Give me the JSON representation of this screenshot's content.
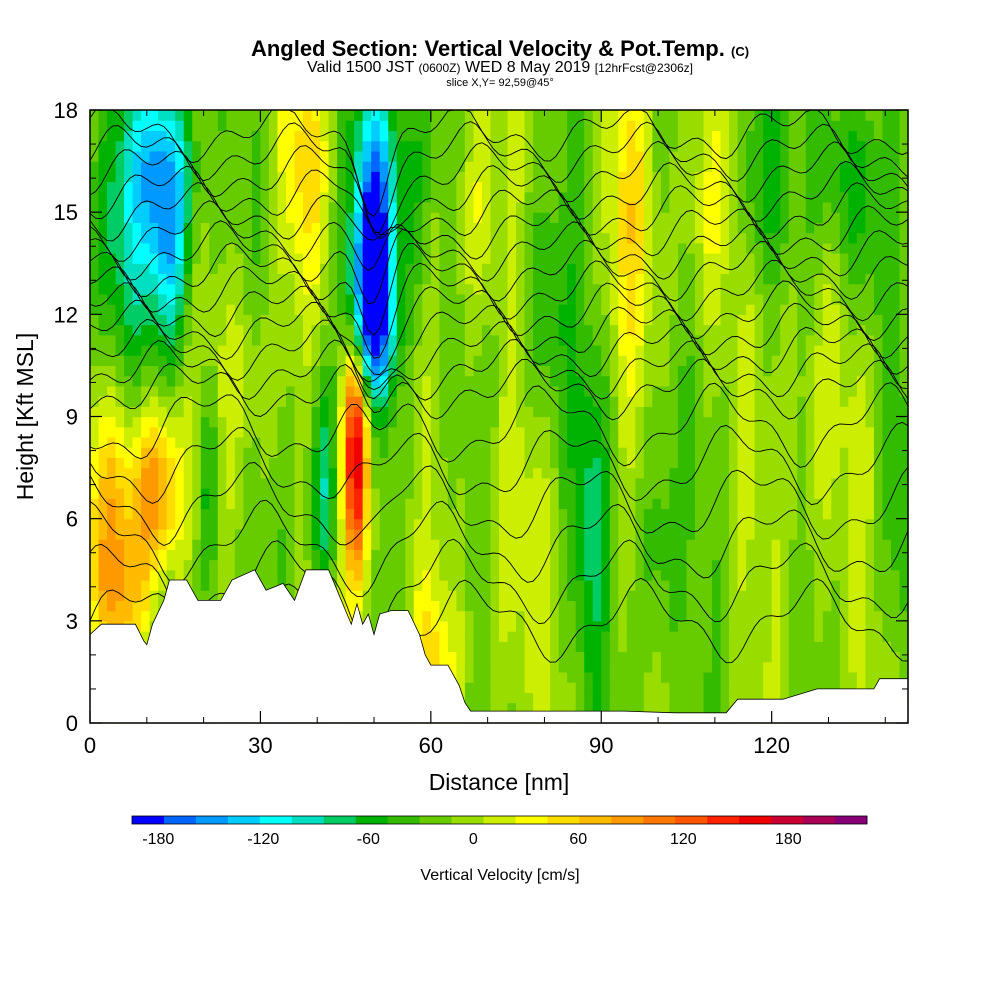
{
  "header": {
    "title": "Angled Section: Vertical Velocity & Pot.Temp.",
    "title_units": "(C)",
    "subtitle_part1": "Valid 1500 JST",
    "subtitle_utc": "(0600Z)",
    "subtitle_part2": "WED 8 May 2019",
    "subtitle_fcst": "[12hrFcst@2306z]",
    "slice": "slice X,Y= 92,59@45°"
  },
  "chart_data": {
    "type": "heatmap",
    "title": "Angled Section: Vertical Velocity & Pot.Temp.",
    "xlabel": "Distance [nm]",
    "ylabel": "Height [Kft MSL]",
    "xlim": [
      0,
      144
    ],
    "ylim": [
      0,
      18
    ],
    "xticks": [
      0,
      30,
      60,
      90,
      120
    ],
    "xtick_labels": [
      "0",
      "30",
      "60",
      "90",
      "120"
    ],
    "yticks": [
      0,
      3,
      6,
      9,
      12,
      15,
      18
    ],
    "ytick_labels": [
      "0",
      "3",
      "6",
      "9",
      "12",
      "15",
      "18"
    ],
    "colorbar": {
      "label": "Vertical Velocity [cm/s]",
      "min": -195,
      "max": 225,
      "step": 20,
      "tick_values": [
        -180,
        -120,
        -60,
        0,
        60,
        120,
        180
      ],
      "tick_labels": [
        "-180",
        "-120",
        "-60",
        "0",
        "60",
        "120",
        "180"
      ],
      "colors": [
        "#0000ff",
        "#0066ff",
        "#0099ff",
        "#00ccff",
        "#00ffff",
        "#00e0c0",
        "#00cc66",
        "#00b200",
        "#33bb00",
        "#66cc00",
        "#99dd00",
        "#ccee00",
        "#ffff00",
        "#ffdd00",
        "#ffbb00",
        "#ff9900",
        "#ff7700",
        "#ff5500",
        "#ff2200",
        "#ee0000",
        "#cc0033",
        "#aa0055",
        "#880077"
      ]
    },
    "velocity_features": [
      {
        "x": 50,
        "y": 14.2,
        "value": -195,
        "sx": 2.5,
        "sy": 3.0
      },
      {
        "x": 49.5,
        "y": 11.8,
        "value": -110,
        "sx": 2.8,
        "sy": 1.6
      },
      {
        "x": 47,
        "y": 7.0,
        "value": 175,
        "sx": 1.6,
        "sy": 2.4
      },
      {
        "x": 47,
        "y": 9.5,
        "value": 90,
        "sx": 2.0,
        "sy": 1.8
      },
      {
        "x": 12,
        "y": 6.8,
        "value": 120,
        "sx": 3.0,
        "sy": 1.8
      },
      {
        "x": 4,
        "y": 6.0,
        "value": 75,
        "sx": 4.0,
        "sy": 2.5
      },
      {
        "x": 13,
        "y": 16.5,
        "value": -120,
        "sx": 4.0,
        "sy": 2.0
      },
      {
        "x": 14,
        "y": 13.5,
        "value": -90,
        "sx": 2.5,
        "sy": 2.0
      },
      {
        "x": 5,
        "y": 14.0,
        "value": -70,
        "sx": 4.0,
        "sy": 3.0
      },
      {
        "x": 41,
        "y": 7.0,
        "value": -90,
        "sx": 1.8,
        "sy": 2.5
      },
      {
        "x": 21,
        "y": 7.0,
        "value": -60,
        "sx": 1.5,
        "sy": 2.5
      },
      {
        "x": 38,
        "y": 16.5,
        "value": 60,
        "sx": 3.0,
        "sy": 2.5
      },
      {
        "x": 56,
        "y": 16.0,
        "value": -55,
        "sx": 3.0,
        "sy": 3.0
      },
      {
        "x": 95,
        "y": 15.0,
        "value": 55,
        "sx": 3.0,
        "sy": 3.5
      },
      {
        "x": 88,
        "y": 6.0,
        "value": -55,
        "sx": 2.5,
        "sy": 3.5
      },
      {
        "x": 100,
        "y": 5.0,
        "value": -45,
        "sx": 2.5,
        "sy": 3.0
      },
      {
        "x": 80,
        "y": 12.0,
        "value": -45,
        "sx": 3.0,
        "sy": 2.5
      },
      {
        "x": 118,
        "y": 16.0,
        "value": -50,
        "sx": 3.0,
        "sy": 2.0
      },
      {
        "x": 131,
        "y": 16.5,
        "value": -55,
        "sx": 3.5,
        "sy": 2.0
      },
      {
        "x": 136,
        "y": 14.0,
        "value": -40,
        "sx": 3.0,
        "sy": 2.5
      },
      {
        "x": 108,
        "y": 15.0,
        "value": 40,
        "sx": 3.0,
        "sy": 2.5
      },
      {
        "x": 128,
        "y": 9.0,
        "value": 30,
        "sx": 5.0,
        "sy": 4.0
      },
      {
        "x": 68,
        "y": 15.0,
        "value": 45,
        "sx": 3.0,
        "sy": 2.5
      },
      {
        "x": 74,
        "y": 5.0,
        "value": 35,
        "sx": 3.0,
        "sy": 3.5
      },
      {
        "x": 60,
        "y": 2.0,
        "value": 55,
        "sx": 3.0,
        "sy": 1.5
      },
      {
        "x": 27,
        "y": 10.0,
        "value": 35,
        "sx": 4.0,
        "sy": 2.0
      },
      {
        "x": 6,
        "y": 3.6,
        "value": 50,
        "sx": 3.5,
        "sy": 1.2
      },
      {
        "x": 142,
        "y": 6.0,
        "value": -30,
        "sx": 2.0,
        "sy": 3.0
      }
    ],
    "theta_levels": [
      26,
      28,
      30,
      32,
      34,
      36,
      38,
      40,
      42,
      44,
      46,
      48,
      50,
      52,
      54,
      56,
      58,
      60,
      62,
      64
    ],
    "terrain_nm_kft": [
      [
        0,
        2.6
      ],
      [
        2,
        2.9
      ],
      [
        8,
        2.9
      ],
      [
        9.5,
        2.4
      ],
      [
        10,
        2.3
      ],
      [
        11,
        2.9
      ],
      [
        13,
        3.6
      ],
      [
        14,
        4.2
      ],
      [
        17,
        4.2
      ],
      [
        19,
        3.6
      ],
      [
        23,
        3.6
      ],
      [
        25,
        4.2
      ],
      [
        29,
        4.5
      ],
      [
        31,
        3.9
      ],
      [
        34,
        4.1
      ],
      [
        36,
        3.6
      ],
      [
        38,
        4.5
      ],
      [
        42,
        4.5
      ],
      [
        43.5,
        3.9
      ],
      [
        45,
        3.3
      ],
      [
        46,
        2.9
      ],
      [
        47,
        3.5
      ],
      [
        48,
        2.9
      ],
      [
        49,
        3.2
      ],
      [
        50,
        2.6
      ],
      [
        51,
        3.2
      ],
      [
        53,
        3.3
      ],
      [
        56,
        3.3
      ],
      [
        58,
        2.6
      ],
      [
        59,
        2.0
      ],
      [
        60,
        1.7
      ],
      [
        63,
        1.7
      ],
      [
        65,
        1.1
      ],
      [
        66,
        0.6
      ],
      [
        67,
        0.35
      ],
      [
        94,
        0.35
      ],
      [
        103,
        0.3
      ],
      [
        112,
        0.3
      ],
      [
        114,
        0.7
      ],
      [
        122,
        0.7
      ],
      [
        128,
        1.0
      ],
      [
        138,
        1.0
      ],
      [
        139,
        1.3
      ],
      [
        144,
        1.3
      ]
    ]
  }
}
